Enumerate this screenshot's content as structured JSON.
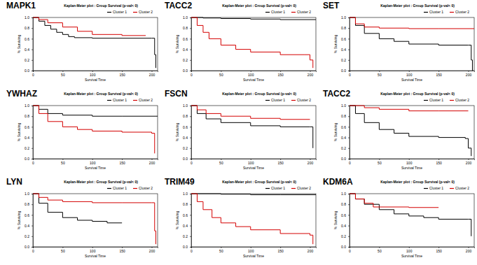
{
  "chart_data": [
    {
      "type": "line",
      "title": "MAPK1",
      "subtitle": "Kaplan-Meier plot : Group Survival (p-val< 0)",
      "x_label": "Survival Time",
      "y_label": "% Surviving",
      "xlim": [
        0,
        210
      ],
      "ylim": [
        0,
        1
      ],
      "xticks": [
        0,
        50,
        100,
        150,
        200
      ],
      "yticks": [
        {
          "value": 0,
          "label": "0.0"
        },
        {
          "value": 0.2,
          "label": "0.2"
        },
        {
          "value": 0.4,
          "label": "0.4"
        },
        {
          "value": 0.6,
          "label": "0.6"
        },
        {
          "value": 0.8,
          "label": "0.8"
        },
        {
          "value": 1,
          "label": "1.0"
        }
      ],
      "line_style": "step",
      "series": [
        {
          "name": "Cluster 1",
          "color": "#000000",
          "x": [
            0,
            10,
            20,
            30,
            40,
            50,
            60,
            70,
            100,
            200,
            205,
            207
          ],
          "values": [
            1,
            0.93,
            0.85,
            0.78,
            0.72,
            0.68,
            0.64,
            0.62,
            0.61,
            0.61,
            0.3,
            0.05
          ]
        },
        {
          "name": "Cluster 2",
          "color": "#d40000",
          "x": [
            0,
            10,
            25,
            50,
            75,
            100,
            150,
            190
          ],
          "values": [
            1,
            0.96,
            0.9,
            0.82,
            0.74,
            0.68,
            0.66,
            0.66
          ]
        }
      ]
    },
    {
      "type": "line",
      "title": "TACC2",
      "subtitle": "Kaplan-Meier plot : Group Survival (p-val< 0)",
      "x_label": "Survival Time",
      "y_label": "% Surviving",
      "xlim": [
        0,
        210
      ],
      "ylim": [
        0,
        1
      ],
      "xticks": [
        0,
        50,
        100,
        150,
        200
      ],
      "yticks": [
        {
          "value": 0,
          "label": "0.0"
        },
        {
          "value": 0.2,
          "label": "0.2"
        },
        {
          "value": 0.4,
          "label": "0.4"
        },
        {
          "value": 0.6,
          "label": "0.6"
        },
        {
          "value": 0.8,
          "label": "0.8"
        },
        {
          "value": 1,
          "label": "1.0"
        }
      ],
      "line_style": "step",
      "series": [
        {
          "name": "Cluster 1",
          "color": "#000000",
          "x": [
            0,
            20,
            50,
            100,
            150,
            210
          ],
          "values": [
            1,
            0.99,
            0.98,
            0.97,
            0.96,
            0.96
          ]
        },
        {
          "name": "Cluster 2",
          "color": "#d40000",
          "x": [
            0,
            10,
            20,
            30,
            50,
            75,
            100,
            150,
            190,
            200,
            205
          ],
          "values": [
            1,
            0.85,
            0.72,
            0.6,
            0.48,
            0.4,
            0.35,
            0.3,
            0.3,
            0.2,
            0.05
          ]
        }
      ]
    },
    {
      "type": "line",
      "title": "SET",
      "subtitle": "Kaplan-Meier plot : Group Survival (p-val< 0)",
      "x_label": "Survival Time",
      "y_label": "% Surviving",
      "xlim": [
        0,
        210
      ],
      "ylim": [
        0,
        1
      ],
      "xticks": [
        0,
        50,
        100,
        150,
        200
      ],
      "yticks": [
        {
          "value": 0,
          "label": "0.0"
        },
        {
          "value": 0.2,
          "label": "0.2"
        },
        {
          "value": 0.4,
          "label": "0.4"
        },
        {
          "value": 0.6,
          "label": "0.6"
        },
        {
          "value": 0.8,
          "label": "0.8"
        },
        {
          "value": 1,
          "label": "1.0"
        }
      ],
      "line_style": "step",
      "series": [
        {
          "name": "Cluster 1",
          "color": "#000000",
          "x": [
            0,
            10,
            25,
            50,
            75,
            100,
            150,
            200,
            205,
            207
          ],
          "values": [
            1,
            0.85,
            0.7,
            0.6,
            0.55,
            0.5,
            0.48,
            0.48,
            0.2,
            0
          ]
        },
        {
          "name": "Cluster 2",
          "color": "#d40000",
          "x": [
            0,
            10,
            25,
            50,
            100,
            150,
            210
          ],
          "values": [
            1,
            0.88,
            0.82,
            0.8,
            0.79,
            0.79,
            0.79
          ]
        }
      ]
    },
    {
      "type": "line",
      "title": "YWHAZ",
      "subtitle": "Kaplan-Meier plot : Group Survival (p-val< 0)",
      "x_label": "Survival Time",
      "y_label": "% Surviving",
      "xlim": [
        0,
        210
      ],
      "ylim": [
        0,
        1
      ],
      "xticks": [
        0,
        50,
        100,
        150,
        200
      ],
      "yticks": [
        {
          "value": 0,
          "label": "0.0"
        },
        {
          "value": 0.2,
          "label": "0.2"
        },
        {
          "value": 0.4,
          "label": "0.4"
        },
        {
          "value": 0.6,
          "label": "0.6"
        },
        {
          "value": 0.8,
          "label": "0.8"
        },
        {
          "value": 1,
          "label": "1.0"
        }
      ],
      "line_style": "step",
      "series": [
        {
          "name": "Cluster 1",
          "color": "#000000",
          "x": [
            0,
            10,
            25,
            50,
            100,
            150,
            210
          ],
          "values": [
            1,
            0.93,
            0.85,
            0.82,
            0.8,
            0.8,
            0.8
          ]
        },
        {
          "name": "Cluster 2",
          "color": "#d40000",
          "x": [
            0,
            10,
            25,
            50,
            75,
            100,
            150,
            200,
            205
          ],
          "values": [
            1,
            0.85,
            0.7,
            0.6,
            0.55,
            0.52,
            0.5,
            0.48,
            0.1
          ]
        }
      ]
    },
    {
      "type": "line",
      "title": "FSCN",
      "subtitle": "Kaplan-Meier plot : Group Survival (p-val< 0)",
      "x_label": "Survival Time",
      "y_label": "% Surviving",
      "xlim": [
        0,
        210
      ],
      "ylim": [
        0,
        1
      ],
      "xticks": [
        0,
        50,
        100,
        150,
        200
      ],
      "yticks": [
        {
          "value": 0,
          "label": "0.0"
        },
        {
          "value": 0.2,
          "label": "0.2"
        },
        {
          "value": 0.4,
          "label": "0.4"
        },
        {
          "value": 0.6,
          "label": "0.6"
        },
        {
          "value": 0.8,
          "label": "0.8"
        },
        {
          "value": 1,
          "label": "1.0"
        }
      ],
      "line_style": "step",
      "series": [
        {
          "name": "Cluster 1",
          "color": "#000000",
          "x": [
            0,
            10,
            25,
            50,
            100,
            150,
            200,
            205
          ],
          "values": [
            1,
            0.85,
            0.75,
            0.68,
            0.62,
            0.6,
            0.6,
            0.2
          ]
        },
        {
          "name": "Cluster 2",
          "color": "#d40000",
          "x": [
            0,
            10,
            25,
            50,
            100,
            150,
            200
          ],
          "values": [
            1,
            0.92,
            0.85,
            0.8,
            0.76,
            0.74,
            0.74
          ]
        }
      ]
    },
    {
      "type": "line",
      "title": "TACC2",
      "subtitle": "Kaplan-Meier plot : Group Survival (p-val< 0)",
      "x_label": "Survival Time",
      "y_label": "% Surviving",
      "xlim": [
        0,
        210
      ],
      "ylim": [
        0,
        1
      ],
      "xticks": [
        0,
        50,
        100,
        150,
        200
      ],
      "yticks": [
        {
          "value": 0,
          "label": "0.0"
        },
        {
          "value": 0.2,
          "label": "0.2"
        },
        {
          "value": 0.4,
          "label": "0.4"
        },
        {
          "value": 0.6,
          "label": "0.6"
        },
        {
          "value": 0.8,
          "label": "0.8"
        },
        {
          "value": 1,
          "label": "1.0"
        }
      ],
      "line_style": "step",
      "series": [
        {
          "name": "Cluster 1",
          "color": "#000000",
          "x": [
            0,
            10,
            25,
            50,
            75,
            100,
            150,
            195,
            200,
            205
          ],
          "values": [
            1,
            0.85,
            0.68,
            0.55,
            0.48,
            0.42,
            0.4,
            0.38,
            0.2,
            0.05
          ]
        },
        {
          "name": "Cluster 2",
          "color": "#d40000",
          "x": [
            0,
            25,
            50,
            100,
            150,
            200
          ],
          "values": [
            1,
            0.96,
            0.93,
            0.9,
            0.9,
            0.9
          ]
        }
      ]
    },
    {
      "type": "line",
      "title": "LYN",
      "subtitle": "Kaplan-Meier plot : Group Survival (p-val< 0)",
      "x_label": "Survival Time",
      "y_label": "% Surviving",
      "xlim": [
        0,
        210
      ],
      "ylim": [
        0,
        1
      ],
      "xticks": [
        0,
        50,
        100,
        150,
        200
      ],
      "yticks": [
        {
          "value": 0,
          "label": "0.0"
        },
        {
          "value": 0.2,
          "label": "0.2"
        },
        {
          "value": 0.4,
          "label": "0.4"
        },
        {
          "value": 0.6,
          "label": "0.6"
        },
        {
          "value": 0.8,
          "label": "0.8"
        },
        {
          "value": 1,
          "label": "1.0"
        }
      ],
      "line_style": "step",
      "series": [
        {
          "name": "Cluster 1",
          "color": "#000000",
          "x": [
            0,
            10,
            25,
            50,
            75,
            100,
            125,
            150
          ],
          "values": [
            1,
            0.82,
            0.65,
            0.55,
            0.5,
            0.48,
            0.45,
            0.45
          ]
        },
        {
          "name": "Cluster 2",
          "color": "#d40000",
          "x": [
            0,
            10,
            25,
            50,
            100,
            150,
            200,
            205,
            207
          ],
          "values": [
            1,
            0.93,
            0.88,
            0.85,
            0.83,
            0.83,
            0.83,
            0.3,
            0.05
          ]
        }
      ]
    },
    {
      "type": "line",
      "title": "TRIM49",
      "subtitle": "Kaplan-Meier plot : Group Survival (p-val< 0)",
      "x_label": "Survival Time",
      "y_label": "% Surviving",
      "xlim": [
        0,
        210
      ],
      "ylim": [
        0,
        1
      ],
      "xticks": [
        0,
        50,
        100,
        150,
        200
      ],
      "yticks": [
        {
          "value": 0,
          "label": "0.0"
        },
        {
          "value": 0.2,
          "label": "0.2"
        },
        {
          "value": 0.4,
          "label": "0.4"
        },
        {
          "value": 0.6,
          "label": "0.6"
        },
        {
          "value": 0.8,
          "label": "0.8"
        },
        {
          "value": 1,
          "label": "1.0"
        }
      ],
      "line_style": "step",
      "series": [
        {
          "name": "Cluster 1",
          "color": "#000000",
          "x": [
            0,
            50,
            100,
            150,
            210
          ],
          "values": [
            1,
            0.99,
            0.98,
            0.98,
            0.98
          ]
        },
        {
          "name": "Cluster 2",
          "color": "#d40000",
          "x": [
            0,
            10,
            20,
            35,
            50,
            75,
            100,
            150,
            200,
            205
          ],
          "values": [
            1,
            0.85,
            0.7,
            0.55,
            0.45,
            0.38,
            0.32,
            0.25,
            0.22,
            0.05
          ]
        }
      ]
    },
    {
      "type": "line",
      "title": "KDM6A",
      "subtitle": "Kaplan-Meier plot : Group Survival (p-val< 0)",
      "x_label": "Survival Time",
      "y_label": "% Surviving",
      "xlim": [
        0,
        210
      ],
      "ylim": [
        0,
        1
      ],
      "xticks": [
        0,
        50,
        100,
        150,
        200
      ],
      "yticks": [
        {
          "value": 0,
          "label": "0.0"
        },
        {
          "value": 0.2,
          "label": "0.2"
        },
        {
          "value": 0.4,
          "label": "0.4"
        },
        {
          "value": 0.6,
          "label": "0.6"
        },
        {
          "value": 0.8,
          "label": "0.8"
        },
        {
          "value": 1,
          "label": "1.0"
        }
      ],
      "line_style": "step",
      "series": [
        {
          "name": "Cluster 1",
          "color": "#000000",
          "x": [
            0,
            10,
            25,
            50,
            75,
            100,
            125,
            150,
            200,
            205
          ],
          "values": [
            1,
            0.9,
            0.8,
            0.7,
            0.62,
            0.58,
            0.55,
            0.52,
            0.52,
            0.2
          ]
        },
        {
          "name": "Cluster 2",
          "color": "#d40000",
          "x": [
            0,
            10,
            25,
            40,
            100,
            150
          ],
          "values": [
            1,
            0.9,
            0.82,
            0.75,
            0.74,
            0.74
          ]
        }
      ]
    }
  ]
}
